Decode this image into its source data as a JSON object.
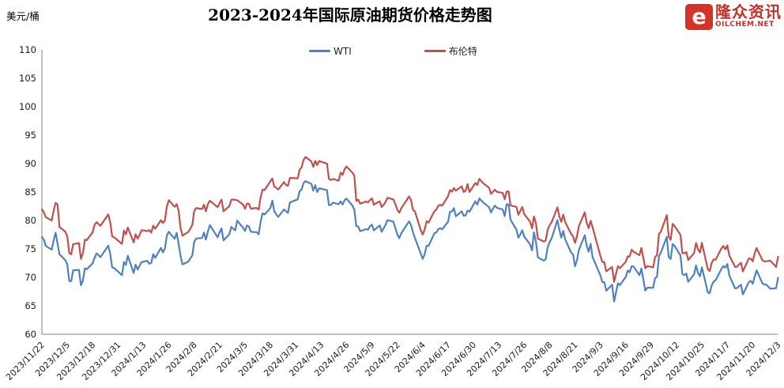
{
  "header": {
    "unit_label": "美元/桶",
    "title": "2023-2024年国际原油期货价格走势图"
  },
  "logo": {
    "icon_glyph": "e",
    "brand": "隆众资讯",
    "domain": "OILCHEM.NET",
    "color": "#d43327"
  },
  "chart_data": {
    "type": "line",
    "title": "2023-2024年国际原油期货价格走势图",
    "xlabel": "",
    "ylabel": "美元/桶",
    "ylim": [
      60,
      110
    ],
    "y_tick_step": 5,
    "grid": false,
    "legend_position": "top-center",
    "x_start": "2023/11/22",
    "x_end": "2024/12/3",
    "x_ticks": [
      "2023/11/22",
      "2023/12/5",
      "2023/12/18",
      "2023/12/31",
      "2024/1/13",
      "2024/1/26",
      "2024/2/8",
      "2024/2/21",
      "2024/3/5",
      "2024/3/18",
      "2024/3/31",
      "2024/4/13",
      "2024/4/26",
      "2024/5/9",
      "2024/5/22",
      "2024/6/4",
      "2024/6/17",
      "2024/6/30",
      "2024/7/13",
      "2024/7/26",
      "2024/8/8",
      "2024/8/21",
      "2024/9/3",
      "2024/9/16",
      "2024/9/29",
      "2024/10/12",
      "2024/10/25",
      "2024/11/7",
      "2024/11/20",
      "2024/12/3"
    ],
    "series": [
      {
        "name": "WTI",
        "color": "#4f81bd"
      },
      {
        "name": "布伦特",
        "color": "#c0504d"
      }
    ],
    "columns": [
      "date",
      "WTI",
      "布伦特"
    ],
    "rows": [
      [
        "2023/11/22",
        77.1,
        81.96
      ],
      [
        "2023/11/23",
        76.6,
        81.42
      ],
      [
        "2023/11/24",
        75.54,
        80.58
      ],
      [
        "2023/11/27",
        74.86,
        79.98
      ],
      [
        "2023/11/28",
        76.41,
        81.68
      ],
      [
        "2023/11/29",
        77.86,
        83.1
      ],
      [
        "2023/11/30",
        75.96,
        82.83
      ],
      [
        "2023/12/1",
        74.07,
        78.88
      ],
      [
        "2023/12/4",
        73.04,
        78.03
      ],
      [
        "2023/12/5",
        72.32,
        77.2
      ],
      [
        "2023/12/6",
        69.38,
        74.3
      ],
      [
        "2023/12/7",
        69.34,
        74.05
      ],
      [
        "2023/12/8",
        71.23,
        75.84
      ],
      [
        "2023/12/11",
        71.32,
        76.03
      ],
      [
        "2023/12/12",
        68.61,
        73.24
      ],
      [
        "2023/12/13",
        69.47,
        74.26
      ],
      [
        "2023/12/14",
        71.58,
        76.61
      ],
      [
        "2023/12/15",
        71.43,
        76.55
      ],
      [
        "2023/12/18",
        72.47,
        77.95
      ],
      [
        "2023/12/19",
        73.44,
        79.23
      ],
      [
        "2023/12/20",
        74.22,
        79.7
      ],
      [
        "2023/12/21",
        73.89,
        79.39
      ],
      [
        "2023/12/22",
        73.56,
        79.07
      ],
      [
        "2023/12/26",
        75.57,
        81.07
      ],
      [
        "2023/12/27",
        74.11,
        79.65
      ],
      [
        "2023/12/28",
        71.77,
        77.2
      ],
      [
        "2023/12/29",
        71.65,
        77.04
      ],
      [
        "2024/1/2",
        70.38,
        75.89
      ],
      [
        "2024/1/3",
        72.7,
        78.25
      ],
      [
        "2024/1/4",
        72.19,
        77.59
      ],
      [
        "2024/1/5",
        73.81,
        78.76
      ],
      [
        "2024/1/8",
        70.77,
        76.12
      ],
      [
        "2024/1/9",
        72.24,
        77.59
      ],
      [
        "2024/1/10",
        71.37,
        76.8
      ],
      [
        "2024/1/11",
        72.02,
        77.41
      ],
      [
        "2024/1/12",
        72.68,
        78.29
      ],
      [
        "2024/1/15",
        72.9,
        78.15
      ],
      [
        "2024/1/16",
        72.4,
        78.29
      ],
      [
        "2024/1/17",
        72.56,
        77.88
      ],
      [
        "2024/1/18",
        74.08,
        79.1
      ],
      [
        "2024/1/19",
        73.41,
        78.56
      ],
      [
        "2024/1/22",
        75.19,
        80.06
      ],
      [
        "2024/1/23",
        74.37,
        79.55
      ],
      [
        "2024/1/24",
        75.09,
        80.04
      ],
      [
        "2024/1/25",
        77.36,
        82.43
      ],
      [
        "2024/1/26",
        78.01,
        83.55
      ],
      [
        "2024/1/29",
        76.78,
        82.4
      ],
      [
        "2024/1/30",
        77.82,
        82.87
      ],
      [
        "2024/1/31",
        75.85,
        81.71
      ],
      [
        "2024/2/1",
        73.82,
        78.7
      ],
      [
        "2024/2/2",
        72.28,
        77.33
      ],
      [
        "2024/2/5",
        72.78,
        77.99
      ],
      [
        "2024/2/6",
        73.31,
        78.59
      ],
      [
        "2024/2/7",
        73.86,
        79.21
      ],
      [
        "2024/2/8",
        76.22,
        81.63
      ],
      [
        "2024/2/9",
        76.84,
        82.19
      ],
      [
        "2024/2/12",
        76.92,
        82.0
      ],
      [
        "2024/2/13",
        77.87,
        82.77
      ],
      [
        "2024/2/14",
        76.64,
        81.6
      ],
      [
        "2024/2/15",
        78.03,
        82.86
      ],
      [
        "2024/2/16",
        79.19,
        83.47
      ],
      [
        "2024/2/20",
        77.04,
        82.34
      ],
      [
        "2024/2/21",
        77.91,
        83.03
      ],
      [
        "2024/2/22",
        78.61,
        83.67
      ],
      [
        "2024/2/23",
        76.49,
        81.62
      ],
      [
        "2024/2/26",
        77.58,
        82.53
      ],
      [
        "2024/2/27",
        78.87,
        83.65
      ],
      [
        "2024/2/28",
        78.54,
        83.68
      ],
      [
        "2024/2/29",
        78.26,
        83.62
      ],
      [
        "2024/3/1",
        79.97,
        83.55
      ],
      [
        "2024/3/4",
        78.74,
        82.8
      ],
      [
        "2024/3/5",
        78.15,
        82.04
      ],
      [
        "2024/3/6",
        79.13,
        82.96
      ],
      [
        "2024/3/7",
        78.93,
        82.96
      ],
      [
        "2024/3/8",
        78.01,
        82.08
      ],
      [
        "2024/3/11",
        77.93,
        82.21
      ],
      [
        "2024/3/12",
        77.56,
        81.92
      ],
      [
        "2024/3/13",
        79.72,
        84.03
      ],
      [
        "2024/3/14",
        81.26,
        85.42
      ],
      [
        "2024/3/15",
        81.04,
        85.34
      ],
      [
        "2024/3/18",
        82.16,
        86.89
      ],
      [
        "2024/3/19",
        83.47,
        87.38
      ],
      [
        "2024/3/20",
        81.68,
        85.95
      ],
      [
        "2024/3/21",
        81.07,
        85.78
      ],
      [
        "2024/3/22",
        80.63,
        85.43
      ],
      [
        "2024/3/25",
        81.95,
        86.75
      ],
      [
        "2024/3/26",
        81.62,
        86.25
      ],
      [
        "2024/3/27",
        81.35,
        86.09
      ],
      [
        "2024/3/28",
        83.17,
        87.48
      ],
      [
        "2024/4/1",
        83.71,
        87.42
      ],
      [
        "2024/4/2",
        85.15,
        88.92
      ],
      [
        "2024/4/3",
        85.43,
        89.35
      ],
      [
        "2024/4/4",
        86.59,
        90.65
      ],
      [
        "2024/4/5",
        86.91,
        91.17
      ],
      [
        "2024/4/8",
        86.43,
        90.38
      ],
      [
        "2024/4/9",
        85.23,
        89.42
      ],
      [
        "2024/4/10",
        86.21,
        90.48
      ],
      [
        "2024/4/11",
        85.02,
        89.74
      ],
      [
        "2024/4/12",
        85.66,
        90.45
      ],
      [
        "2024/4/15",
        85.41,
        90.1
      ],
      [
        "2024/4/16",
        85.36,
        90.02
      ],
      [
        "2024/4/17",
        82.69,
        87.29
      ],
      [
        "2024/4/18",
        82.73,
        87.11
      ],
      [
        "2024/4/19",
        83.14,
        87.29
      ],
      [
        "2024/4/22",
        82.85,
        87.0
      ],
      [
        "2024/4/23",
        83.36,
        88.42
      ],
      [
        "2024/4/24",
        82.81,
        88.02
      ],
      [
        "2024/4/25",
        83.57,
        89.01
      ],
      [
        "2024/4/26",
        83.85,
        89.5
      ],
      [
        "2024/4/29",
        82.63,
        88.4
      ],
      [
        "2024/4/30",
        81.93,
        87.86
      ],
      [
        "2024/5/1",
        79.0,
        83.44
      ],
      [
        "2024/5/2",
        78.95,
        83.67
      ],
      [
        "2024/5/3",
        78.11,
        82.96
      ],
      [
        "2024/5/6",
        78.48,
        83.33
      ],
      [
        "2024/5/7",
        78.38,
        83.16
      ],
      [
        "2024/5/8",
        78.99,
        83.58
      ],
      [
        "2024/5/9",
        79.26,
        83.88
      ],
      [
        "2024/5/10",
        78.26,
        82.79
      ],
      [
        "2024/5/13",
        79.12,
        83.36
      ],
      [
        "2024/5/14",
        78.02,
        82.38
      ],
      [
        "2024/5/15",
        78.63,
        82.75
      ],
      [
        "2024/5/16",
        79.23,
        83.27
      ],
      [
        "2024/5/17",
        80.06,
        83.98
      ],
      [
        "2024/5/20",
        79.8,
        83.71
      ],
      [
        "2024/5/21",
        78.66,
        82.88
      ],
      [
        "2024/5/22",
        77.57,
        81.9
      ],
      [
        "2024/5/23",
        76.87,
        81.36
      ],
      [
        "2024/5/24",
        77.72,
        82.12
      ],
      [
        "2024/5/28",
        79.83,
        84.22
      ],
      [
        "2024/5/29",
        79.23,
        83.6
      ],
      [
        "2024/5/30",
        77.91,
        81.86
      ],
      [
        "2024/5/31",
        76.99,
        81.62
      ],
      [
        "2024/6/3",
        74.22,
        78.36
      ],
      [
        "2024/6/4",
        73.25,
        77.52
      ],
      [
        "2024/6/5",
        74.07,
        78.41
      ],
      [
        "2024/6/6",
        75.55,
        79.87
      ],
      [
        "2024/6/7",
        75.53,
        79.62
      ],
      [
        "2024/6/10",
        77.74,
        81.63
      ],
      [
        "2024/6/11",
        77.9,
        81.92
      ],
      [
        "2024/6/12",
        78.5,
        82.6
      ],
      [
        "2024/6/13",
        78.62,
        82.75
      ],
      [
        "2024/6/14",
        78.45,
        82.62
      ],
      [
        "2024/6/17",
        79.77,
        84.25
      ],
      [
        "2024/6/18",
        81.57,
        85.33
      ],
      [
        "2024/6/19",
        81.57,
        85.07
      ],
      [
        "2024/6/20",
        82.17,
        85.71
      ],
      [
        "2024/6/21",
        80.73,
        85.24
      ],
      [
        "2024/6/24",
        81.63,
        86.01
      ],
      [
        "2024/6/25",
        80.83,
        85.01
      ],
      [
        "2024/6/26",
        80.9,
        85.25
      ],
      [
        "2024/6/27",
        81.74,
        86.39
      ],
      [
        "2024/6/28",
        81.54,
        85.0
      ],
      [
        "2024/7/1",
        83.38,
        86.6
      ],
      [
        "2024/7/2",
        82.81,
        86.24
      ],
      [
        "2024/7/3",
        83.88,
        87.34
      ],
      [
        "2024/7/5",
        83.16,
        86.54
      ],
      [
        "2024/7/8",
        82.33,
        85.75
      ],
      [
        "2024/7/9",
        81.41,
        84.66
      ],
      [
        "2024/7/10",
        82.1,
        85.08
      ],
      [
        "2024/7/11",
        82.62,
        85.4
      ],
      [
        "2024/7/12",
        82.21,
        85.03
      ],
      [
        "2024/7/15",
        81.91,
        84.85
      ],
      [
        "2024/7/16",
        80.76,
        83.73
      ],
      [
        "2024/7/17",
        82.85,
        85.08
      ],
      [
        "2024/7/18",
        82.82,
        85.11
      ],
      [
        "2024/7/19",
        80.13,
        82.63
      ],
      [
        "2024/7/22",
        78.4,
        82.4
      ],
      [
        "2024/7/23",
        76.96,
        81.01
      ],
      [
        "2024/7/24",
        77.59,
        81.71
      ],
      [
        "2024/7/25",
        78.28,
        82.37
      ],
      [
        "2024/7/26",
        77.16,
        81.13
      ],
      [
        "2024/7/29",
        75.81,
        79.78
      ],
      [
        "2024/7/30",
        74.73,
        78.63
      ],
      [
        "2024/7/31",
        77.91,
        80.72
      ],
      [
        "2024/8/1",
        76.31,
        79.52
      ],
      [
        "2024/8/2",
        73.52,
        76.81
      ],
      [
        "2024/8/5",
        72.94,
        76.3
      ],
      [
        "2024/8/6",
        73.2,
        76.48
      ],
      [
        "2024/8/7",
        75.23,
        78.33
      ],
      [
        "2024/8/8",
        76.19,
        79.16
      ],
      [
        "2024/8/9",
        76.84,
        79.66
      ],
      [
        "2024/8/12",
        80.06,
        82.3
      ],
      [
        "2024/8/13",
        78.35,
        80.69
      ],
      [
        "2024/8/14",
        76.98,
        79.76
      ],
      [
        "2024/8/15",
        78.16,
        81.04
      ],
      [
        "2024/8/16",
        76.65,
        79.68
      ],
      [
        "2024/8/19",
        74.37,
        77.66
      ],
      [
        "2024/8/20",
        74.04,
        77.2
      ],
      [
        "2024/8/21",
        71.93,
        76.05
      ],
      [
        "2024/8/22",
        73.01,
        77.22
      ],
      [
        "2024/8/23",
        74.83,
        79.02
      ],
      [
        "2024/8/26",
        77.42,
        81.43
      ],
      [
        "2024/8/27",
        75.53,
        79.55
      ],
      [
        "2024/8/28",
        74.52,
        78.65
      ],
      [
        "2024/8/29",
        75.91,
        79.94
      ],
      [
        "2024/8/30",
        73.55,
        78.8
      ],
      [
        "2024/9/3",
        70.34,
        73.75
      ],
      [
        "2024/9/4",
        69.2,
        72.7
      ],
      [
        "2024/9/5",
        69.15,
        72.69
      ],
      [
        "2024/9/6",
        67.67,
        71.06
      ],
      [
        "2024/9/9",
        68.71,
        71.84
      ],
      [
        "2024/9/10",
        65.75,
        69.19
      ],
      [
        "2024/9/11",
        67.31,
        70.61
      ],
      [
        "2024/9/12",
        68.97,
        71.97
      ],
      [
        "2024/9/13",
        68.65,
        71.61
      ],
      [
        "2024/9/16",
        70.09,
        72.75
      ],
      [
        "2024/9/17",
        71.19,
        73.7
      ],
      [
        "2024/9/18",
        70.91,
        73.65
      ],
      [
        "2024/9/19",
        71.95,
        74.88
      ],
      [
        "2024/9/20",
        71.92,
        74.49
      ],
      [
        "2024/9/23",
        70.37,
        73.9
      ],
      [
        "2024/9/24",
        71.56,
        75.17
      ],
      [
        "2024/9/25",
        69.69,
        73.46
      ],
      [
        "2024/9/26",
        67.67,
        71.6
      ],
      [
        "2024/9/27",
        68.18,
        71.98
      ],
      [
        "2024/9/30",
        68.17,
        71.77
      ],
      [
        "2024/10/1",
        69.83,
        73.56
      ],
      [
        "2024/10/2",
        70.1,
        73.9
      ],
      [
        "2024/10/3",
        73.71,
        77.62
      ],
      [
        "2024/10/4",
        74.38,
        78.05
      ],
      [
        "2024/10/7",
        77.14,
        80.93
      ],
      [
        "2024/10/8",
        73.57,
        77.18
      ],
      [
        "2024/10/9",
        73.24,
        76.58
      ],
      [
        "2024/10/10",
        75.85,
        79.4
      ],
      [
        "2024/10/11",
        75.56,
        79.04
      ],
      [
        "2024/10/14",
        73.83,
        77.46
      ],
      [
        "2024/10/15",
        70.58,
        74.25
      ],
      [
        "2024/10/16",
        70.39,
        74.22
      ],
      [
        "2024/10/17",
        70.67,
        74.45
      ],
      [
        "2024/10/18",
        69.22,
        73.06
      ],
      [
        "2024/10/21",
        70.56,
        74.29
      ],
      [
        "2024/10/22",
        72.09,
        76.04
      ],
      [
        "2024/10/23",
        70.77,
        74.96
      ],
      [
        "2024/10/24",
        70.19,
        74.38
      ],
      [
        "2024/10/25",
        71.78,
        76.05
      ],
      [
        "2024/10/28",
        67.38,
        71.42
      ],
      [
        "2024/10/29",
        67.21,
        71.12
      ],
      [
        "2024/10/30",
        68.61,
        72.55
      ],
      [
        "2024/10/31",
        69.26,
        73.16
      ],
      [
        "2024/11/1",
        69.49,
        73.1
      ],
      [
        "2024/11/4",
        71.47,
        75.08
      ],
      [
        "2024/11/5",
        71.99,
        75.53
      ],
      [
        "2024/11/6",
        71.69,
        74.92
      ],
      [
        "2024/11/7",
        72.36,
        75.63
      ],
      [
        "2024/11/8",
        70.38,
        73.87
      ],
      [
        "2024/11/11",
        68.04,
        71.83
      ],
      [
        "2024/11/12",
        68.12,
        71.89
      ],
      [
        "2024/11/13",
        68.43,
        72.28
      ],
      [
        "2024/11/14",
        68.7,
        72.56
      ],
      [
        "2024/11/15",
        67.02,
        71.04
      ],
      [
        "2024/11/18",
        69.16,
        73.3
      ],
      [
        "2024/11/19",
        69.39,
        73.31
      ],
      [
        "2024/11/20",
        68.87,
        72.81
      ],
      [
        "2024/11/21",
        70.1,
        74.23
      ],
      [
        "2024/11/22",
        71.24,
        75.17
      ],
      [
        "2024/11/25",
        68.94,
        73.01
      ],
      [
        "2024/11/26",
        68.77,
        72.81
      ],
      [
        "2024/11/27",
        68.72,
        72.83
      ],
      [
        "2024/11/29",
        68.0,
        72.94
      ],
      [
        "2024/12/2",
        68.1,
        71.83
      ],
      [
        "2024/12/3",
        69.94,
        73.62
      ]
    ]
  }
}
